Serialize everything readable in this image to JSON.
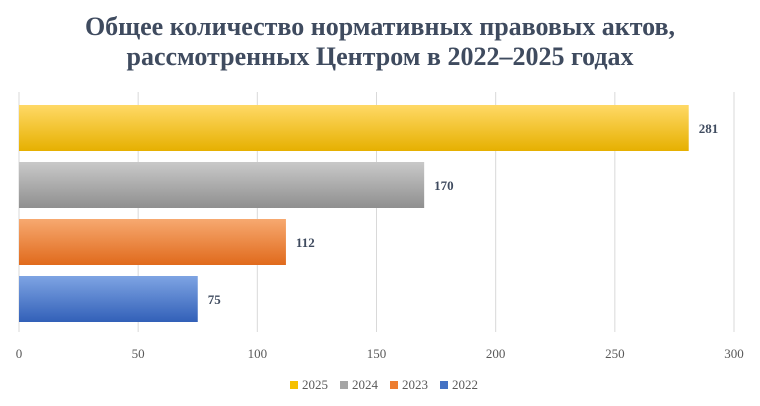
{
  "chart_data": {
    "type": "bar",
    "orientation": "horizontal",
    "title_lines": [
      "Общее количество нормативных  правовых актов,",
      "рассмотренных Центром  в 2022–2025 годах"
    ],
    "categories": [
      "2025",
      "2024",
      "2023",
      "2022"
    ],
    "values": [
      281,
      170,
      112,
      75
    ],
    "data_labels": [
      "281",
      "170",
      "112",
      "75"
    ],
    "xlim": [
      0,
      300
    ],
    "x_ticks": [
      0,
      50,
      100,
      150,
      200,
      250,
      300
    ],
    "x_tick_labels": [
      "0",
      "50",
      "100",
      "150",
      "200",
      "250",
      "300"
    ],
    "grid": "vertical",
    "legend": {
      "placement": "bottom",
      "entries": [
        {
          "label": "2025",
          "color": "#f5c000"
        },
        {
          "label": "2024",
          "color": "#a5a5a5"
        },
        {
          "label": "2023",
          "color": "#ed7d31"
        },
        {
          "label": "2022",
          "color": "#4472c4"
        }
      ]
    },
    "colors": {
      "2025": {
        "top": "#ffd966",
        "bottom": "#e6b000"
      },
      "2024": {
        "top": "#c9c9c9",
        "bottom": "#8f8f8f"
      },
      "2023": {
        "top": "#f7a970",
        "bottom": "#e06a1c"
      },
      "2022": {
        "top": "#7ea4e3",
        "bottom": "#3260b8"
      }
    },
    "label_color": "#3f4b5f",
    "axis_color": "#595959",
    "grid_color": "#d9d9d9"
  }
}
